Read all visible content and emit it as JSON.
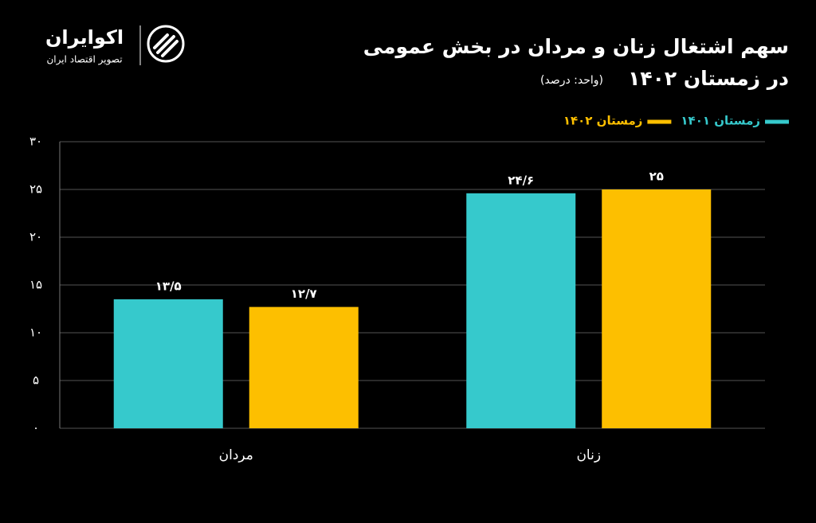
{
  "brand": {
    "name": "اکوایران",
    "tagline": "تصویر اقتصاد ایران"
  },
  "chart_data": {
    "type": "bar",
    "title": "سهم اشتغال زنان و مردان در بخش عمومی",
    "subtitle": "در زمستان ۱۴۰۲",
    "unit": "(واحد: درصد)",
    "categories": [
      "مردان",
      "زنان"
    ],
    "series": [
      {
        "name": "زمستان ۱۴۰۱",
        "color": "#36c9cc",
        "values": [
          13.5,
          24.6
        ],
        "value_labels": [
          "۱۳/۵",
          "۲۴/۶"
        ]
      },
      {
        "name": "زمستان ۱۴۰۲",
        "color": "#fdbf00",
        "values": [
          12.7,
          25
        ],
        "value_labels": [
          "۱۲/۷",
          "۲۵"
        ]
      }
    ],
    "ylim": [
      0,
      30
    ],
    "yticks": [
      {
        "value": 0,
        "label": "۰"
      },
      {
        "value": 5,
        "label": "۵"
      },
      {
        "value": 10,
        "label": "۱۰"
      },
      {
        "value": 15,
        "label": "۱۵"
      },
      {
        "value": 20,
        "label": "۲۰"
      },
      {
        "value": 25,
        "label": "۲۵"
      },
      {
        "value": 30,
        "label": "۳۰"
      }
    ],
    "grid": true,
    "legend": "top-right"
  }
}
